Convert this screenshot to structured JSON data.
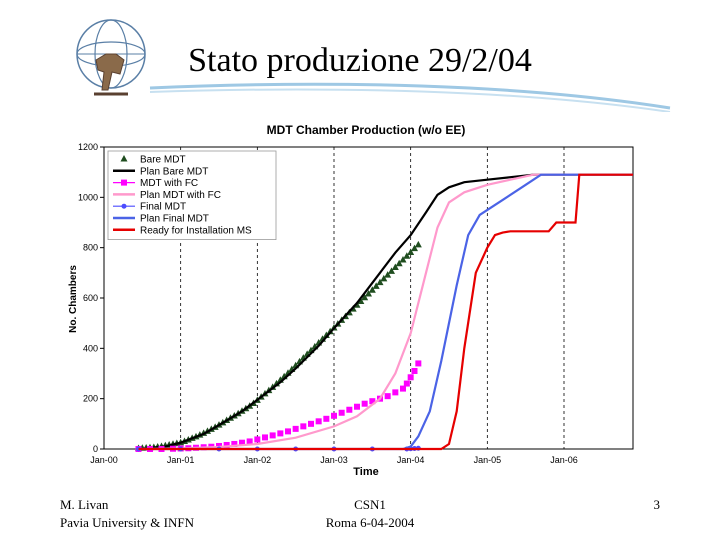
{
  "slide": {
    "title": "Stato produzione 29/2/04",
    "footer_left_line1": "M. Livan",
    "footer_left_line2": "Pavia University & INFN",
    "footer_center_line1": "CSN1",
    "footer_center_line2": "Roma 6-04-2004",
    "page_number": "3"
  },
  "chart_data": {
    "type": "line",
    "title": "MDT Chamber Production (w/o EE)",
    "xlabel": "Time",
    "ylabel": "No. Chambers",
    "x_unit": "years (decimal, Jan-00 = 2000.0)",
    "xlim": [
      2000.0,
      2006.9
    ],
    "ylim": [
      0,
      1200
    ],
    "x_ticks": [
      2000,
      2001,
      2002,
      2003,
      2004,
      2005,
      2006
    ],
    "x_tick_labels": [
      "Jan-00",
      "Jan-01",
      "Jan-02",
      "Jan-03",
      "Jan-04",
      "Jan-05",
      "Jan-06"
    ],
    "y_ticks": [
      0,
      200,
      400,
      600,
      800,
      1000,
      1200
    ],
    "grid": "vertical dashed",
    "legend_position": "top-left",
    "series": [
      {
        "name": "Bare MDT",
        "style": "markers",
        "marker": "triangle",
        "color": "#1f4d1f",
        "x": [
          2000.45,
          2000.5,
          2000.55,
          2000.6,
          2000.65,
          2000.7,
          2000.75,
          2000.8,
          2000.85,
          2000.9,
          2000.95,
          2001.0,
          2001.05,
          2001.1,
          2001.15,
          2001.2,
          2001.25,
          2001.3,
          2001.35,
          2001.4,
          2001.45,
          2001.5,
          2001.55,
          2001.6,
          2001.65,
          2001.7,
          2001.75,
          2001.8,
          2001.85,
          2001.9,
          2001.95,
          2002.0,
          2002.05,
          2002.1,
          2002.15,
          2002.2,
          2002.25,
          2002.3,
          2002.35,
          2002.4,
          2002.45,
          2002.5,
          2002.55,
          2002.6,
          2002.65,
          2002.7,
          2002.75,
          2002.8,
          2002.85,
          2002.9,
          2002.95,
          2003.0,
          2003.05,
          2003.1,
          2003.15,
          2003.2,
          2003.25,
          2003.3,
          2003.35,
          2003.4,
          2003.45,
          2003.5,
          2003.55,
          2003.6,
          2003.65,
          2003.7,
          2003.75,
          2003.8,
          2003.85,
          2003.9,
          2003.95,
          2004.0,
          2004.05,
          2004.1
        ],
        "y": [
          2,
          3,
          4,
          5,
          6,
          8,
          10,
          13,
          16,
          19,
          22,
          25,
          30,
          36,
          42,
          48,
          55,
          62,
          70,
          78,
          86,
          95,
          104,
          113,
          122,
          131,
          140,
          150,
          160,
          170,
          181,
          193,
          206,
          219,
          232,
          245,
          259,
          273,
          287,
          301,
          316,
          331,
          346,
          361,
          376,
          391,
          406,
          421,
          436,
          451,
          466,
          481,
          496,
          511,
          526,
          541,
          556,
          571,
          586,
          601,
          616,
          631,
          646,
          661,
          676,
          691,
          706,
          721,
          736,
          751,
          766,
          781,
          796,
          811
        ]
      },
      {
        "name": "Plan Bare MDT",
        "style": "line",
        "color": "#000000",
        "x": [
          2000.45,
          2000.8,
          2001.0,
          2001.3,
          2001.5,
          2001.8,
          2002.0,
          2002.3,
          2002.5,
          2002.8,
          2003.0,
          2003.3,
          2003.5,
          2003.8,
          2004.0,
          2004.2,
          2004.35,
          2004.5,
          2004.7,
          2005.0,
          2005.3,
          2005.6,
          2006.9
        ],
        "y": [
          0,
          10,
          25,
          60,
          95,
          150,
          195,
          265,
          320,
          410,
          480,
          580,
          660,
          780,
          850,
          940,
          1010,
          1040,
          1060,
          1070,
          1080,
          1090,
          1090
        ]
      },
      {
        "name": "MDT with FC",
        "style": "markers",
        "marker": "square",
        "color": "#ff00ff",
        "x": [
          2000.45,
          2000.6,
          2000.75,
          2000.9,
          2001.0,
          2001.1,
          2001.2,
          2001.3,
          2001.4,
          2001.5,
          2001.6,
          2001.7,
          2001.8,
          2001.9,
          2002.0,
          2002.1,
          2002.2,
          2002.3,
          2002.4,
          2002.5,
          2002.6,
          2002.7,
          2002.8,
          2002.9,
          2003.0,
          2003.1,
          2003.2,
          2003.3,
          2003.4,
          2003.5,
          2003.6,
          2003.7,
          2003.8,
          2003.9,
          2003.95,
          2004.0,
          2004.05,
          2004.1
        ],
        "y": [
          0,
          0,
          0,
          1,
          2,
          3,
          5,
          7,
          9,
          12,
          16,
          20,
          25,
          30,
          38,
          46,
          54,
          62,
          70,
          80,
          90,
          100,
          110,
          120,
          132,
          144,
          156,
          168,
          180,
          190,
          200,
          210,
          225,
          240,
          260,
          285,
          310,
          340
        ]
      },
      {
        "name": "Plan MDT with FC",
        "style": "line",
        "color": "#ff99cc",
        "x": [
          2000.45,
          2001.0,
          2001.5,
          2002.0,
          2002.5,
          2003.0,
          2003.3,
          2003.6,
          2003.8,
          2004.0,
          2004.2,
          2004.35,
          2004.5,
          2004.7,
          2005.0,
          2005.3,
          2005.6,
          2006.9
        ],
        "y": [
          0,
          2,
          8,
          20,
          45,
          90,
          130,
          200,
          300,
          460,
          700,
          880,
          980,
          1020,
          1050,
          1070,
          1090,
          1090
        ]
      },
      {
        "name": "Final MDT",
        "style": "markers",
        "marker": "circle",
        "color": "#4c4cff",
        "x": [
          2000.45,
          2001.0,
          2001.5,
          2002.0,
          2002.5,
          2003.0,
          2003.5,
          2003.95,
          2004.0,
          2004.05,
          2004.1
        ],
        "y": [
          0,
          0,
          0,
          0,
          0,
          0,
          0,
          0,
          1,
          2,
          3
        ]
      },
      {
        "name": "Plan Final MDT",
        "style": "line",
        "color": "#4b63e6",
        "x": [
          2000.45,
          2001.0,
          2002.0,
          2003.0,
          2003.9,
          2004.0,
          2004.1,
          2004.25,
          2004.4,
          2004.6,
          2004.75,
          2004.9,
          2005.2,
          2005.5,
          2005.7,
          2006.9
        ],
        "y": [
          0,
          0,
          0,
          0,
          0,
          10,
          50,
          150,
          350,
          650,
          850,
          930,
          990,
          1050,
          1090,
          1090
        ]
      },
      {
        "name": "Ready for Installation MS",
        "style": "line",
        "color": "#e60000",
        "x": [
          2000.45,
          2001.0,
          2002.0,
          2003.0,
          2004.0,
          2004.2,
          2004.4,
          2004.5,
          2004.6,
          2004.7,
          2004.85,
          2005.0,
          2005.1,
          2005.2,
          2005.3,
          2005.8,
          2005.9,
          2006.15,
          2006.2,
          2006.9
        ],
        "y": [
          0,
          0,
          0,
          0,
          0,
          0,
          0,
          20,
          150,
          400,
          700,
          800,
          850,
          860,
          865,
          865,
          900,
          900,
          1090,
          1090
        ]
      }
    ]
  }
}
